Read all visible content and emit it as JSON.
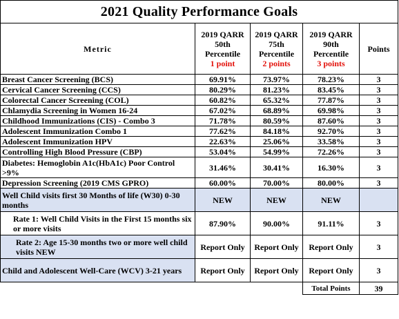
{
  "title": "2021 Quality Performance Goals",
  "header": {
    "metric": "Metric",
    "col50": [
      "2019 QARR",
      "50th",
      "Percentile"
    ],
    "col50_points": "1 point",
    "col75": [
      "2019 QARR",
      "75th",
      "Percentile"
    ],
    "col75_points": "2 points",
    "col90": [
      "2019 QARR",
      "90th",
      "Percentile"
    ],
    "col90_points": "3 points",
    "points": "Points"
  },
  "rows": [
    {
      "metric": "Breast Cancer Screening (BCS)",
      "p50": "69.91%",
      "p75": "73.97%",
      "p90": "78.23%",
      "points": "3"
    },
    {
      "metric": "Cervical Cancer Screening (CCS)",
      "p50": "80.29%",
      "p75": "81.23%",
      "p90": "83.45%",
      "points": "3"
    },
    {
      "metric": "Colorectal Cancer Screening (COL)",
      "p50": "60.82%",
      "p75": "65.32%",
      "p90": "77.87%",
      "points": "3"
    },
    {
      "metric": "Chlamydia Screening in Women 16-24",
      "p50": "67.02%",
      "p75": "68.89%",
      "p90": "69.98%",
      "points": "3"
    },
    {
      "metric": "Childhood Immunizations (CIS) - Combo 3",
      "p50": "71.78%",
      "p75": "80.59%",
      "p90": "87.60%",
      "points": "3"
    },
    {
      "metric": "Adolescent Immunization Combo 1",
      "p50": "77.62%",
      "p75": "84.18%",
      "p90": "92.70%",
      "points": "3"
    },
    {
      "metric": "Adolescent Immunization HPV",
      "p50": "22.63%",
      "p75": "25.06%",
      "p90": "33.58%",
      "points": "3"
    },
    {
      "metric": "Controlling High Blood Pressure (CBP)",
      "p50": "53.04%",
      "p75": "54.99%",
      "p90": "72.26%",
      "points": "3"
    },
    {
      "metric": "Diabetes: Hemoglobin A1c(HbA1c) Poor Control >9%",
      "p50": "31.46%",
      "p75": "30.41%",
      "p90": "16.30%",
      "points": "3"
    },
    {
      "metric": "Depression Screening (2019 CMS GPRO)",
      "p50": "60.00%",
      "p75": "70.00%",
      "p90": "80.00%",
      "points": "3"
    }
  ],
  "w30": {
    "metric": "Well Child visits first 30 Months of life (W30) 0-30 months",
    "p50": "NEW",
    "p75": "NEW",
    "p90": "NEW",
    "points": ""
  },
  "rate1": {
    "metric": "Rate 1: Well Child Visits in the First 15 months six or more visits",
    "p50": "87.90%",
    "p75": "90.00%",
    "p90": "91.11%",
    "points": "3"
  },
  "rate2": {
    "metric": "Rate 2: Age 15-30 months two or more well child visits   NEW",
    "p50": "Report Only",
    "p75": "Report Only",
    "p90": "Report Only",
    "points": "3"
  },
  "wcv": {
    "metric": "Child and Adolescent Well-Care (WCV) 3-21 years",
    "p50": "Report Only",
    "p75": "Report Only",
    "p90": "Report Only",
    "points": "3"
  },
  "total": {
    "label": "Total Points",
    "value": "39"
  },
  "colors": {
    "shade": "#d9e1f2",
    "points_red": "#e3120b"
  }
}
